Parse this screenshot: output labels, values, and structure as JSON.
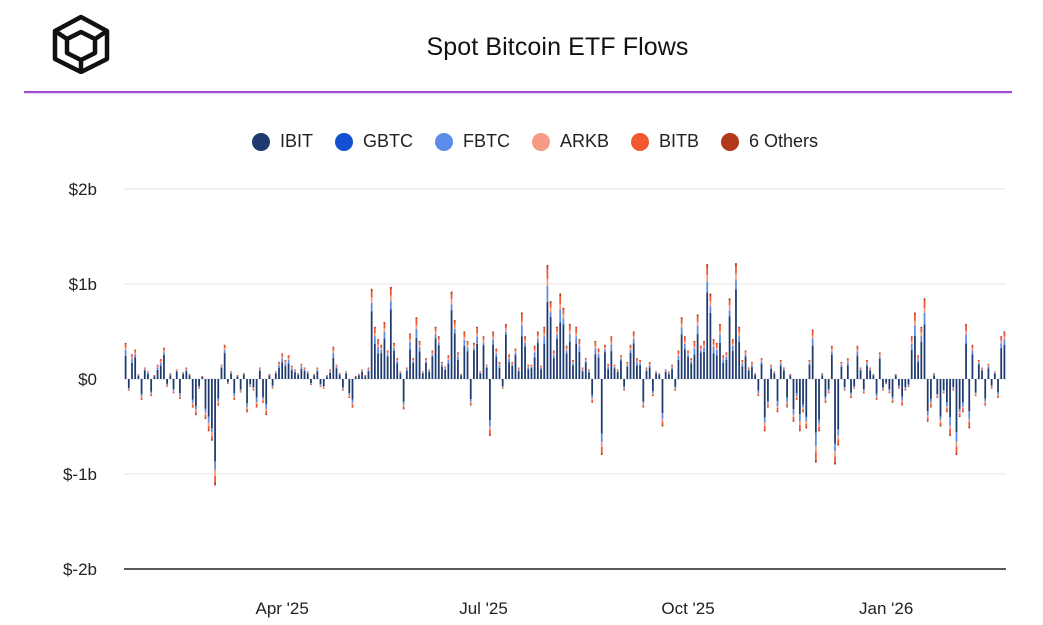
{
  "header": {
    "title": "Spot Bitcoin ETF Flows",
    "logo": "cube-logo"
  },
  "colors": {
    "IBIT": "#1e3a6e",
    "GBTC": "#1450d2",
    "FBTC": "#5b8de8",
    "ARKB": "#f59a84",
    "BITB": "#f2582f",
    "Others": "#b2381e",
    "rule": "#a04ad8"
  },
  "chart_data": {
    "type": "bar",
    "stacked": true,
    "title": "Spot Bitcoin ETF Flows",
    "xlabel": "",
    "ylabel": "",
    "ylim": [
      -2,
      2
    ],
    "y_ticks": [
      {
        "value": 2,
        "label": "$2b"
      },
      {
        "value": 1,
        "label": "$1b"
      },
      {
        "value": 0,
        "label": "$0"
      },
      {
        "value": -1,
        "label": "$-1b"
      },
      {
        "value": -2,
        "label": "$-2b"
      }
    ],
    "x_ticks": [
      {
        "index": 49,
        "label": "Apr '25"
      },
      {
        "index": 112,
        "label": "Jul '25"
      },
      {
        "index": 176,
        "label": "Oct '25"
      },
      {
        "index": 238,
        "label": "Jan '26"
      }
    ],
    "legend": [
      "IBIT",
      "GBTC",
      "FBTC",
      "ARKB",
      "BITB",
      "6 Others"
    ],
    "legend_position": "top-center",
    "series_names": [
      "IBIT",
      "GBTC",
      "FBTC",
      "ARKB",
      "BITB",
      "6 Others"
    ],
    "totals": [
      0.38,
      -0.12,
      0.26,
      0.31,
      0.05,
      -0.22,
      0.12,
      0.08,
      -0.18,
      0.04,
      0.15,
      0.21,
      0.33,
      -0.08,
      0.06,
      -0.15,
      0.1,
      -0.21,
      0.07,
      0.12,
      0.05,
      -0.3,
      -0.38,
      -0.1,
      0.03,
      -0.42,
      -0.55,
      -0.65,
      -1.12,
      -0.28,
      0.15,
      0.36,
      -0.05,
      0.08,
      -0.22,
      0.04,
      -0.14,
      0.06,
      -0.35,
      -0.08,
      -0.12,
      -0.3,
      0.12,
      -0.25,
      -0.38,
      0.05,
      -0.1,
      0.08,
      0.18,
      0.27,
      0.2,
      0.25,
      0.14,
      0.1,
      0.06,
      0.16,
      0.12,
      0.08,
      -0.06,
      0.05,
      0.12,
      -0.08,
      -0.1,
      0.04,
      0.1,
      0.34,
      0.15,
      0.06,
      -0.12,
      0.08,
      -0.2,
      -0.3,
      0.03,
      0.05,
      0.1,
      0.04,
      0.12,
      0.95,
      0.55,
      0.42,
      0.36,
      0.6,
      0.3,
      0.97,
      0.38,
      0.22,
      0.08,
      -0.32,
      0.12,
      0.48,
      0.22,
      0.65,
      0.4,
      0.08,
      0.22,
      0.1,
      0.3,
      0.55,
      0.45,
      0.18,
      0.13,
      0.25,
      0.92,
      0.62,
      0.28,
      0.05,
      0.5,
      0.4,
      -0.28,
      0.38,
      0.55,
      0.08,
      0.45,
      0.15,
      -0.6,
      0.5,
      0.32,
      0.18,
      -0.1,
      0.58,
      0.26,
      0.18,
      0.32,
      0.12,
      0.7,
      0.45,
      0.15,
      0.15,
      0.35,
      0.5,
      0.14,
      0.55,
      1.2,
      0.82,
      0.3,
      0.55,
      0.9,
      0.75,
      0.35,
      0.58,
      0.2,
      0.55,
      0.42,
      0.12,
      0.22,
      0.1,
      -0.25,
      0.4,
      0.32,
      -0.8,
      0.36,
      0.16,
      0.45,
      0.15,
      0.1,
      0.25,
      -0.12,
      0.18,
      0.36,
      0.5,
      0.22,
      0.2,
      -0.3,
      0.12,
      0.18,
      -0.18,
      0.08,
      0.06,
      -0.5,
      0.1,
      0.08,
      0.15,
      -0.12,
      0.3,
      0.65,
      0.45,
      0.3,
      0.22,
      0.4,
      0.68,
      0.35,
      0.4,
      1.21,
      0.9,
      0.42,
      0.38,
      0.58,
      0.25,
      0.28,
      0.85,
      0.42,
      1.22,
      0.55,
      0.2,
      0.3,
      0.12,
      0.18,
      0.06,
      -0.18,
      0.22,
      -0.55,
      -0.3,
      0.15,
      0.08,
      -0.35,
      0.2,
      0.12,
      -0.3,
      0.05,
      -0.45,
      -0.22,
      -0.55,
      -0.35,
      -0.52,
      0.2,
      0.52,
      -0.88,
      -0.55,
      0.06,
      -0.25,
      -0.15,
      0.35,
      -0.9,
      -0.7,
      0.18,
      -0.12,
      0.22,
      -0.2,
      -0.1,
      0.35,
      0.12,
      -0.15,
      0.2,
      0.12,
      0.05,
      -0.22,
      0.28,
      -0.12,
      -0.05,
      -0.15,
      -0.25,
      0.05,
      -0.1,
      -0.28,
      -0.12,
      -0.08,
      0.45,
      0.7,
      0.25,
      0.55,
      0.85,
      -0.45,
      -0.3,
      0.06,
      -0.2,
      -0.5,
      -0.15,
      -0.35,
      -0.6,
      -0.12,
      -0.8,
      -0.4,
      -0.35,
      0.58,
      -0.52,
      0.36,
      -0.18,
      0.2,
      0.12,
      -0.28,
      0.16,
      -0.1,
      0.08,
      -0.2,
      0.45,
      0.5
    ]
  }
}
